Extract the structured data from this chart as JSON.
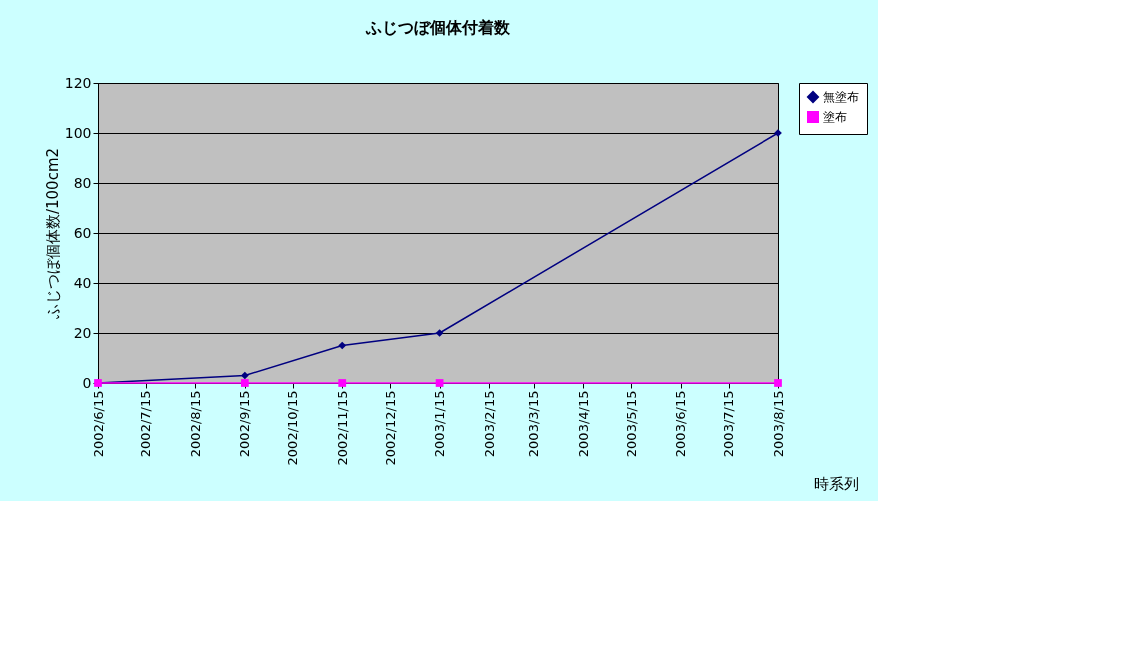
{
  "chart_data": {
    "type": "line",
    "title": "ふじつぼ個体付着数",
    "xlabel": "時系列",
    "ylabel": "ふじつぼ個体数/100cm2",
    "x": [
      "2002-06-15",
      "2002-09-15",
      "2002-11-15",
      "2003-01-15",
      "2003-08-15"
    ],
    "series": [
      {
        "name": "無塗布",
        "color": "#000080",
        "marker": "diamond",
        "values": [
          0,
          3,
          15,
          20,
          100
        ]
      },
      {
        "name": "塗布",
        "color": "#ff00ff",
        "marker": "square",
        "values": [
          0,
          0,
          0,
          0,
          0
        ]
      }
    ],
    "xlim": [
      "2002-06-15",
      "2003-08-15"
    ],
    "xticks": [
      {
        "value": "2002-06-15",
        "label": "2002/6/15"
      },
      {
        "value": "2002-07-15",
        "label": "2002/7/15"
      },
      {
        "value": "2002-08-15",
        "label": "2002/8/15"
      },
      {
        "value": "2002-09-15",
        "label": "2002/9/15"
      },
      {
        "value": "2002-10-15",
        "label": "2002/10/15"
      },
      {
        "value": "2002-11-15",
        "label": "2002/11/15"
      },
      {
        "value": "2002-12-15",
        "label": "2002/12/15"
      },
      {
        "value": "2003-01-15",
        "label": "2003/1/15"
      },
      {
        "value": "2003-02-15",
        "label": "2003/2/15"
      },
      {
        "value": "2003-03-15",
        "label": "2003/3/15"
      },
      {
        "value": "2003-04-15",
        "label": "2003/4/15"
      },
      {
        "value": "2003-05-15",
        "label": "2003/5/15"
      },
      {
        "value": "2003-06-15",
        "label": "2003/6/15"
      },
      {
        "value": "2003-07-15",
        "label": "2003/7/15"
      },
      {
        "value": "2003-08-15",
        "label": "2003/8/15"
      }
    ],
    "ylim": [
      0,
      120
    ],
    "yticks": [
      0,
      20,
      40,
      60,
      80,
      100,
      120
    ],
    "grid": "y",
    "legend": "right",
    "line_style": "solid"
  }
}
